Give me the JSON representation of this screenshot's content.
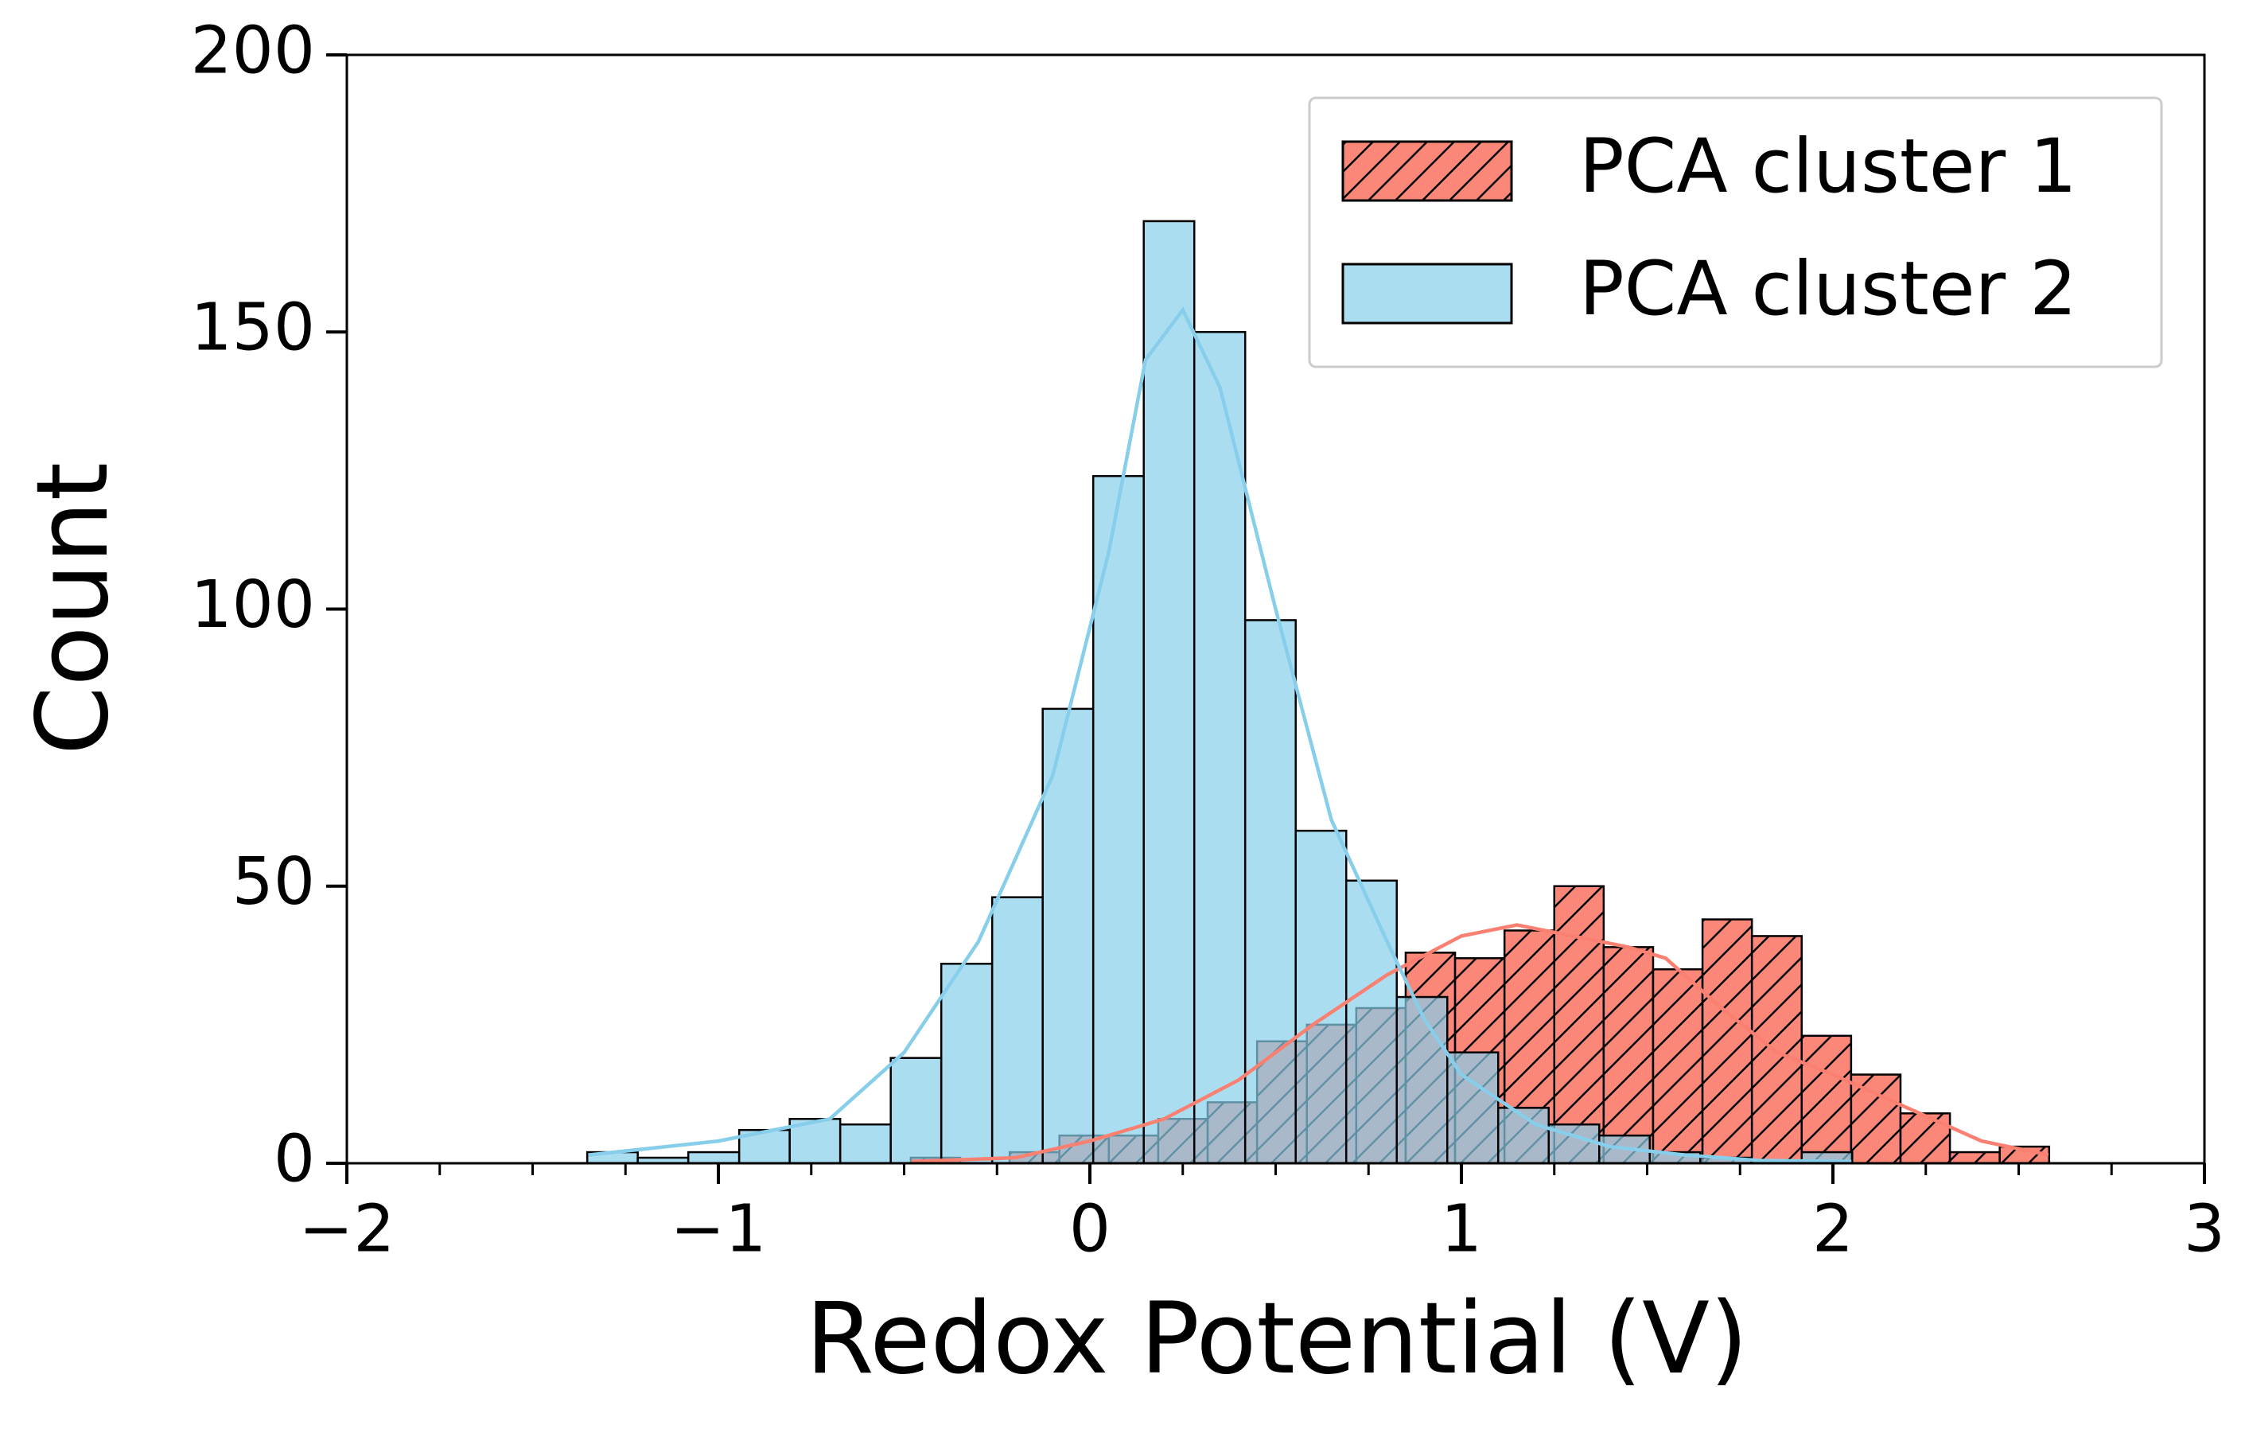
{
  "chart_data": {
    "type": "histogram",
    "xlabel": "Redox Potential (V)",
    "ylabel": "Count",
    "xlim": [
      -2,
      3
    ],
    "ylim": [
      0,
      200
    ],
    "xticks": [
      {
        "value": -2,
        "label": "−2"
      },
      {
        "value": -1,
        "label": "−1"
      },
      0,
      1,
      2,
      3
    ],
    "xminorticks": [
      -1.75,
      -1.5,
      -1.25,
      -0.75,
      -0.5,
      -0.25,
      0.25,
      0.5,
      0.75,
      1.25,
      1.5,
      1.75,
      2.25,
      2.5,
      2.75
    ],
    "yticks": [
      0,
      50,
      100,
      150,
      200
    ],
    "legend": "upper right",
    "series": [
      {
        "name": "PCA cluster 1",
        "color": "#fa8072",
        "hatch": "//",
        "bins": [
          -0.482,
          -0.349,
          -0.216,
          -0.082,
          0.051,
          0.184,
          0.317,
          0.45,
          0.584,
          0.717,
          0.85,
          0.983,
          1.116,
          1.25,
          1.383,
          1.516,
          1.649,
          1.782,
          1.916,
          2.049,
          2.182,
          2.315,
          2.449,
          2.582
        ],
        "values": [
          1,
          0,
          2,
          5,
          5,
          8,
          11,
          22,
          25,
          28,
          38,
          37,
          42,
          50,
          39,
          35,
          44,
          41,
          23,
          16,
          9,
          2,
          3
        ],
        "kde": {
          "x": [
            -0.48,
            -0.2,
            0,
            0.2,
            0.4,
            0.6,
            0.8,
            1.0,
            1.15,
            1.3,
            1.45,
            1.55,
            1.7,
            1.85,
            2.0,
            2.2,
            2.4,
            2.58
          ],
          "values": [
            0.3,
            1,
            4,
            8,
            15,
            25,
            34,
            41,
            43,
            41,
            39,
            37,
            28,
            20,
            16,
            10,
            4,
            1.5
          ]
        }
      },
      {
        "name": "PCA cluster 2",
        "color": "#87ceeb",
        "bins": [
          -1.353,
          -1.217,
          -1.081,
          -0.944,
          -0.808,
          -0.672,
          -0.536,
          -0.4,
          -0.263,
          -0.127,
          0.009,
          0.145,
          0.281,
          0.418,
          0.554,
          0.69,
          0.826,
          0.962,
          1.099,
          1.235,
          1.371,
          1.507,
          1.643,
          1.78,
          1.916,
          2.052
        ],
        "values": [
          2,
          1,
          2,
          6,
          8,
          7,
          19,
          36,
          48,
          82,
          124,
          170,
          150,
          98,
          60,
          51,
          30,
          20,
          10,
          7,
          5,
          2,
          1,
          0,
          2
        ],
        "kde": {
          "x": [
            -1.35,
            -1.0,
            -0.7,
            -0.5,
            -0.3,
            -0.1,
            0.05,
            0.15,
            0.25,
            0.35,
            0.5,
            0.65,
            0.8,
            0.9,
            1.0,
            1.2,
            1.4,
            1.6,
            1.8,
            2.05
          ],
          "values": [
            1.5,
            4,
            8,
            20,
            40,
            70,
            110,
            145,
            154,
            140,
            100,
            62,
            40,
            26,
            16,
            7,
            3,
            1.5,
            0.5,
            0.3
          ]
        }
      }
    ]
  }
}
